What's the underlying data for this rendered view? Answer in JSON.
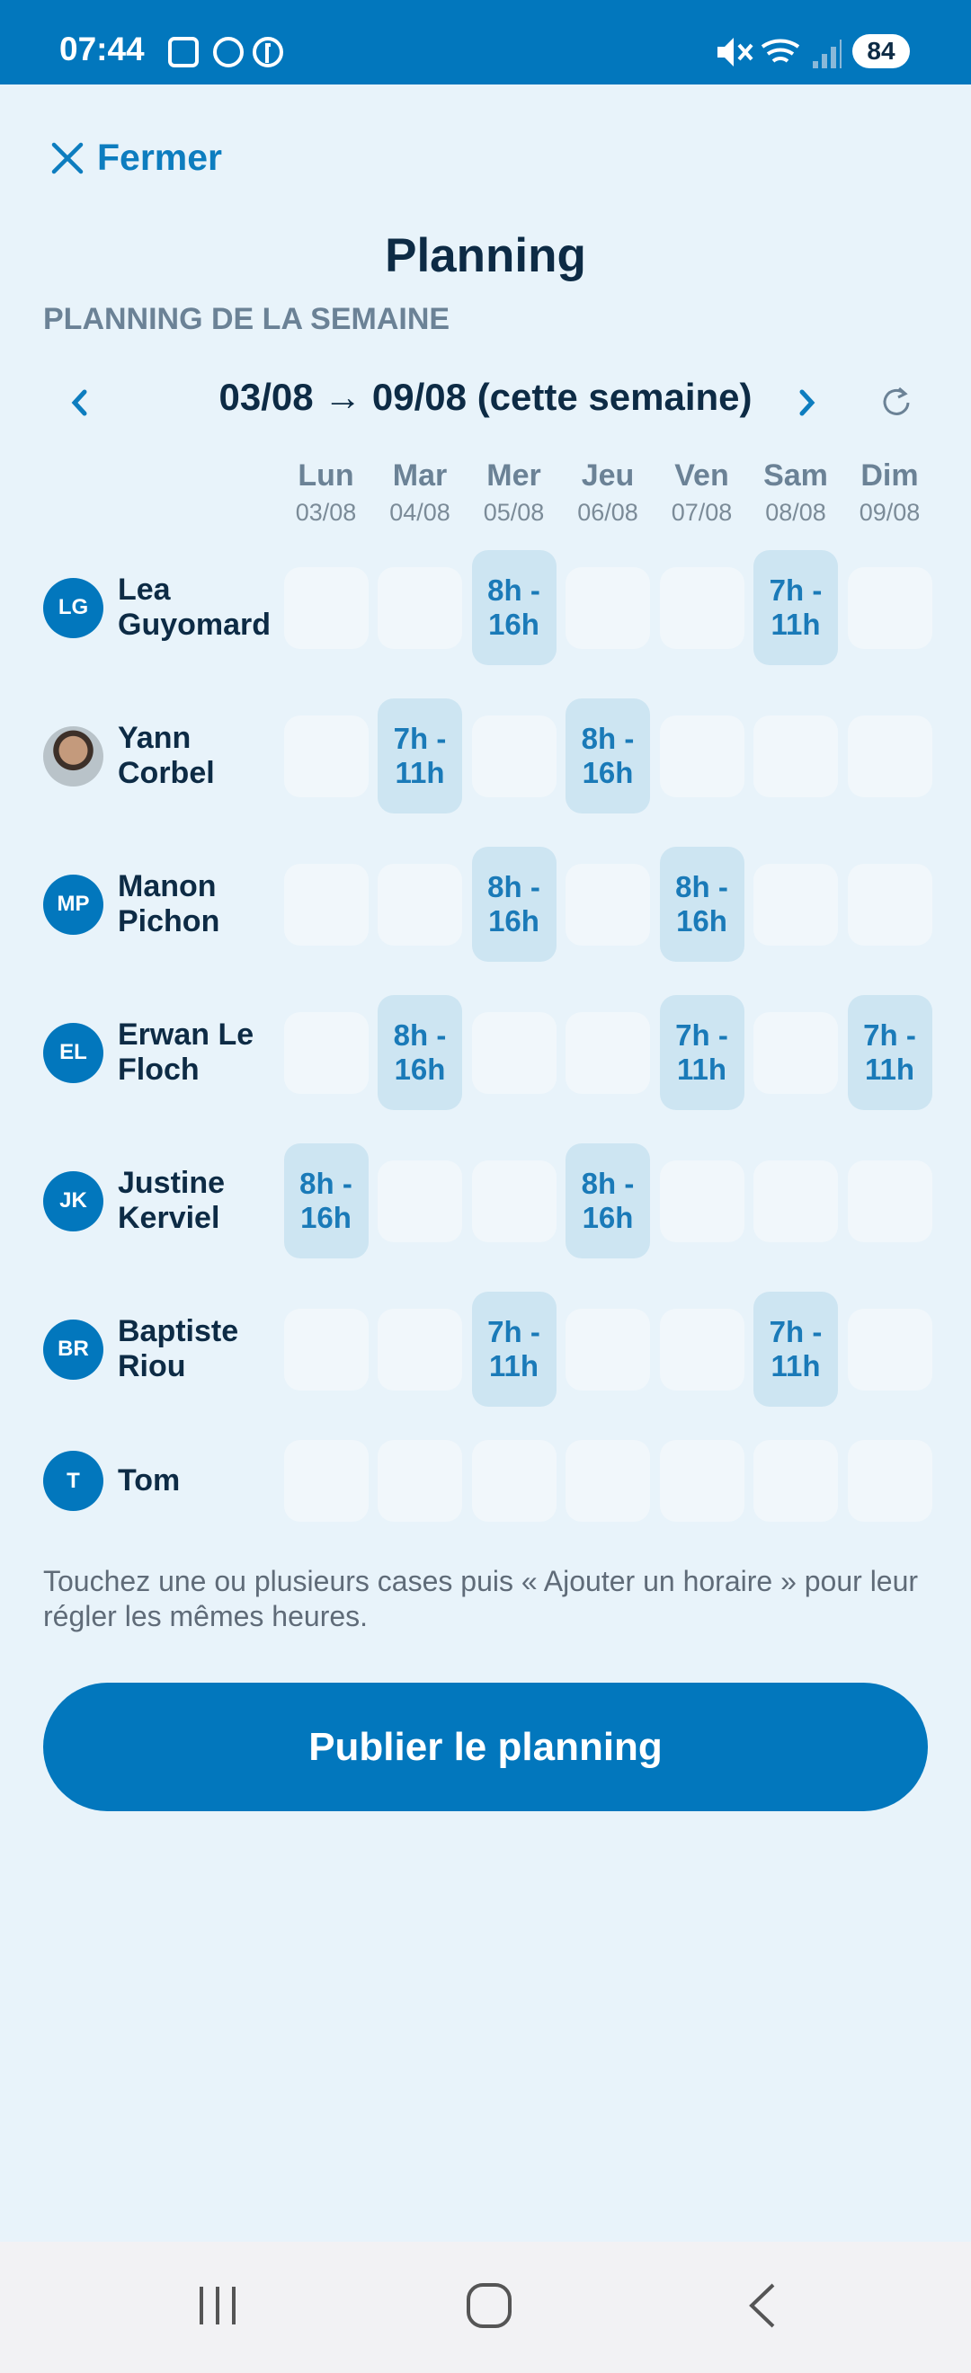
{
  "status_bar": {
    "time": "07:44",
    "battery": "84"
  },
  "header": {
    "close": "Fermer",
    "title": "Planning",
    "section": "PLANNING DE LA SEMAINE"
  },
  "week_nav": {
    "label": "03/08 → 09/08 (cette semaine)"
  },
  "days": [
    {
      "name": "Lun",
      "date": "03/08"
    },
    {
      "name": "Mar",
      "date": "04/08"
    },
    {
      "name": "Mer",
      "date": "05/08"
    },
    {
      "name": "Jeu",
      "date": "06/08"
    },
    {
      "name": "Ven",
      "date": "07/08"
    },
    {
      "name": "Sam",
      "date": "08/08"
    },
    {
      "name": "Dim",
      "date": "09/08"
    }
  ],
  "employees": [
    {
      "initials": "LG",
      "name": "Lea Guyomard",
      "shifts": [
        null,
        null,
        "8h - 16h",
        null,
        null,
        "7h - 11h",
        null
      ]
    },
    {
      "name": "Yann Corbel",
      "shifts": [
        null,
        "7h - 11h",
        null,
        "8h - 16h",
        null,
        null,
        null
      ]
    },
    {
      "initials": "MP",
      "name": "Manon Pichon",
      "shifts": [
        null,
        null,
        "8h - 16h",
        null,
        "8h - 16h",
        null,
        null
      ]
    },
    {
      "initials": "EL",
      "name": "Erwan Le Floch",
      "shifts": [
        null,
        "8h - 16h",
        null,
        null,
        "7h - 11h",
        null,
        "7h - 11h"
      ]
    },
    {
      "initials": "JK",
      "name": "Justine Kerviel",
      "shifts": [
        "8h - 16h",
        null,
        null,
        "8h - 16h",
        null,
        null,
        null
      ]
    },
    {
      "initials": "BR",
      "name": "Baptiste Riou",
      "shifts": [
        null,
        null,
        "7h - 11h",
        null,
        null,
        "7h - 11h",
        null
      ]
    },
    {
      "initials": "T",
      "name": "Tom",
      "shifts": [
        null,
        null,
        null,
        null,
        null,
        null,
        null
      ]
    }
  ],
  "hint": "Touchez une ou plusieurs cases puis « Ajouter un horaire » pour leur régler les mêmes heures.",
  "publish_button": "Publier le planning"
}
